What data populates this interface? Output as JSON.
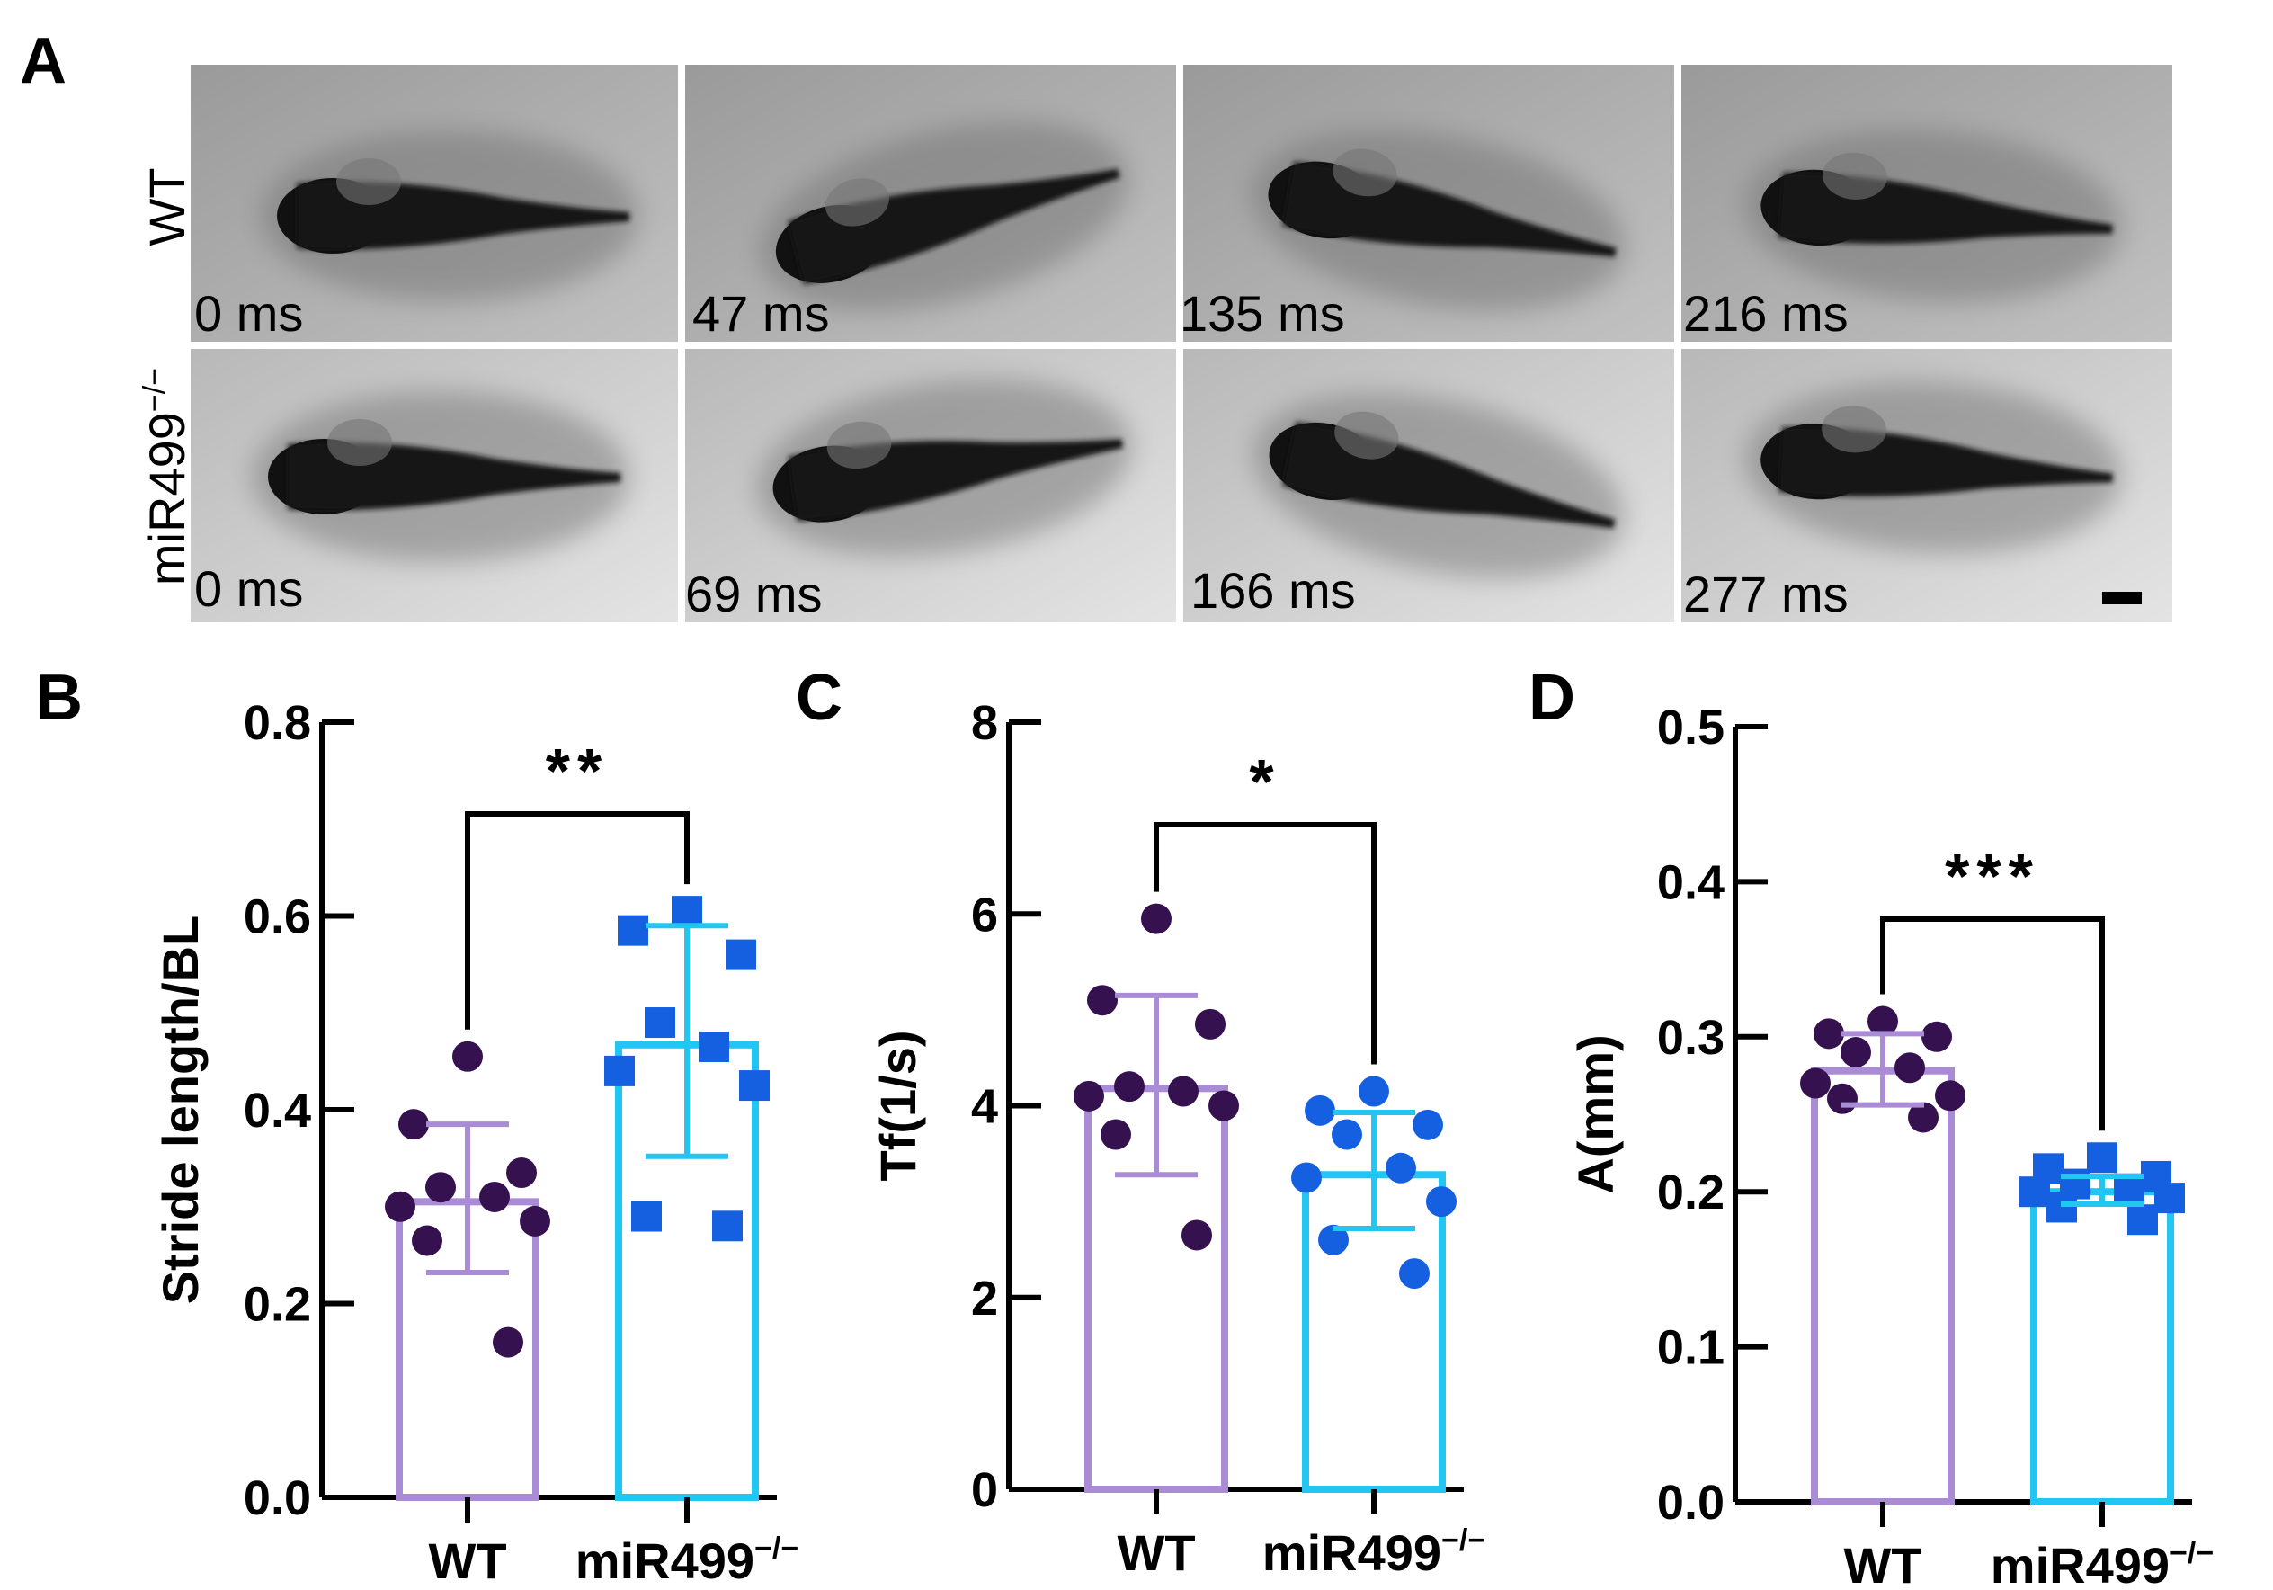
{
  "panel_a": {
    "letter": "A",
    "rows": [
      {
        "label": "WT",
        "frames": [
          "0 ms",
          "47 ms",
          "135 ms",
          "216 ms"
        ]
      },
      {
        "label": "miR499",
        "label_sup": "−/−",
        "frames": [
          "0 ms",
          "69 ms",
          "166 ms",
          "277 ms"
        ]
      }
    ]
  },
  "chart_data": [
    {
      "panel": "B",
      "type": "bar",
      "title": "",
      "ylabel": "Stride length/BL",
      "ylim": [
        0,
        0.8
      ],
      "yticks": [
        "0.0",
        "0.2",
        "0.4",
        "0.6",
        "0.8"
      ],
      "categories": [
        {
          "name": "WT",
          "sup": "",
          "mean": 0.305,
          "sd_low": 0.232,
          "sd_high": 0.385,
          "color": "#a98bd6",
          "marker": "circle",
          "point_color": "#35124f",
          "points": [
            0.455,
            0.385,
            0.335,
            0.32,
            0.31,
            0.3,
            0.285,
            0.265,
            0.16
          ]
        },
        {
          "name": "miR499",
          "sup": "−/−",
          "mean": 0.467,
          "sd_low": 0.352,
          "sd_high": 0.59,
          "color": "#21c7f2",
          "marker": "square",
          "point_color": "#1560e0",
          "points": [
            0.605,
            0.585,
            0.56,
            0.49,
            0.465,
            0.44,
            0.425,
            0.29,
            0.28
          ]
        }
      ],
      "significance": "**"
    },
    {
      "panel": "C",
      "type": "bar",
      "title": "",
      "ylabel": "Tf(1/s)",
      "ylim": [
        0,
        8
      ],
      "yticks": [
        "0",
        "2",
        "4",
        "6",
        "8"
      ],
      "categories": [
        {
          "name": "WT",
          "sup": "",
          "mean": 4.18,
          "sd_low": 3.28,
          "sd_high": 5.15,
          "color": "#a98bd6",
          "marker": "circle",
          "point_color": "#35124f",
          "points": [
            5.95,
            5.1,
            4.85,
            4.2,
            4.15,
            4.1,
            4.0,
            3.7,
            2.65
          ]
        },
        {
          "name": "miR499",
          "sup": "−/−",
          "mean": 3.28,
          "sd_low": 2.72,
          "sd_high": 3.93,
          "color": "#21c7f2",
          "marker": "circle",
          "point_color": "#1560e0",
          "points": [
            4.15,
            3.95,
            3.8,
            3.7,
            3.35,
            3.25,
            3.0,
            2.6,
            2.25
          ]
        }
      ],
      "significance": "*"
    },
    {
      "panel": "D",
      "type": "bar",
      "title": "",
      "ylabel": "A(mm)",
      "ylim": [
        0,
        0.5
      ],
      "yticks": [
        "0.0",
        "0.1",
        "0.2",
        "0.3",
        "0.4",
        "0.5"
      ],
      "categories": [
        {
          "name": "WT",
          "sup": "",
          "mean": 0.278,
          "sd_low": 0.256,
          "sd_high": 0.302,
          "color": "#a98bd6",
          "marker": "circle",
          "point_color": "#35124f",
          "points": [
            0.31,
            0.302,
            0.3,
            0.29,
            0.28,
            0.27,
            0.262,
            0.26,
            0.248
          ]
        },
        {
          "name": "miR499",
          "sup": "−/−",
          "mean": 0.2,
          "sd_low": 0.192,
          "sd_high": 0.21,
          "color": "#21c7f2",
          "marker": "square",
          "point_color": "#1560e0",
          "points": [
            0.222,
            0.215,
            0.21,
            0.205,
            0.202,
            0.2,
            0.196,
            0.19,
            0.182
          ]
        }
      ],
      "significance": "***"
    }
  ]
}
